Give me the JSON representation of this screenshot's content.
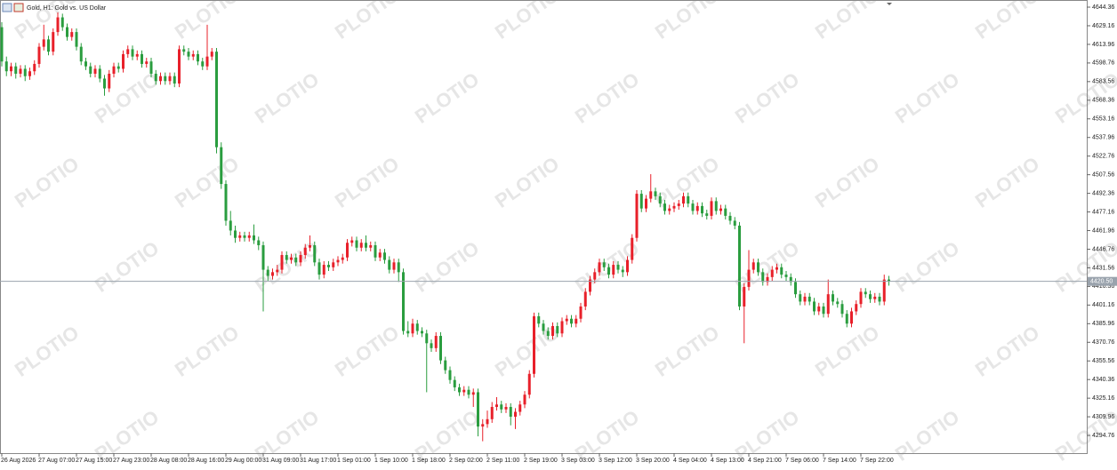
{
  "chart_data": {
    "type": "candlestick",
    "title": "Gold, H1:  Gold vs. US Dollar",
    "watermark": "PLOTIO",
    "up_color": "#e8202a",
    "down_color": "#2a9d3f",
    "ylim": [
      4280.3,
      4648.0
    ],
    "yticks": [
      4294.76,
      4309.96,
      4325.16,
      4340.36,
      4355.56,
      4370.76,
      4385.96,
      4401.16,
      4416.36,
      4431.56,
      4446.76,
      4461.96,
      4477.16,
      4492.36,
      4507.56,
      4522.76,
      4537.96,
      4553.16,
      4568.36,
      4583.56,
      4598.76,
      4613.96,
      4629.16,
      4644.36
    ],
    "last_price": {
      "value": 4420.5,
      "label": "4420.50"
    },
    "categories": [
      "26 Aug 2026",
      null,
      null,
      null,
      null,
      null,
      null,
      null,
      "27 Aug 07:00",
      null,
      null,
      null,
      null,
      null,
      null,
      null,
      "27 Aug 15:00",
      null,
      null,
      null,
      null,
      null,
      null,
      null,
      "27 Aug 23:00",
      null,
      null,
      null,
      null,
      null,
      null,
      null,
      "28 Aug 08:00",
      null,
      null,
      null,
      null,
      null,
      null,
      null,
      "28 Aug 16:00",
      null,
      null,
      null,
      null,
      null,
      null,
      null,
      "29 Aug 00:00",
      null,
      null,
      null,
      null,
      null,
      null,
      null,
      "31 Aug 09:00",
      null,
      null,
      null,
      null,
      null,
      null,
      null,
      "31 Aug 17:00",
      null,
      null,
      null,
      null,
      null,
      null,
      null,
      "1 Sep 01:00",
      null,
      null,
      null,
      null,
      null,
      null,
      null,
      "1 Sep 10:00",
      null,
      null,
      null,
      null,
      null,
      null,
      null,
      "1 Sep 18:00",
      null,
      null,
      null,
      null,
      null,
      null,
      null,
      "2 Sep 02:00",
      null,
      null,
      null,
      null,
      null,
      null,
      null,
      "2 Sep 11:00",
      null,
      null,
      null,
      null,
      null,
      null,
      null,
      "2 Sep 19:00",
      null,
      null,
      null,
      null,
      null,
      null,
      null,
      "3 Sep 03:00",
      null,
      null,
      null,
      null,
      null,
      null,
      null,
      "3 Sep 12:00",
      null,
      null,
      null,
      null,
      null,
      null,
      null,
      "3 Sep 20:00",
      null,
      null,
      null,
      null,
      null,
      null,
      null,
      "4 Sep 04:00",
      null,
      null,
      null,
      null,
      null,
      null,
      null,
      "4 Sep 13:00",
      null,
      null,
      null,
      null,
      null,
      null,
      null,
      "4 Sep 21:00",
      null,
      null,
      null,
      null,
      null,
      null,
      null,
      "7 Sep 06:00",
      null,
      null,
      null,
      null,
      null,
      null,
      null,
      "7 Sep 14:00",
      null,
      null,
      null,
      null,
      null,
      null,
      null,
      "7 Sep 22:00",
      null,
      null,
      null,
      null,
      null,
      null
    ],
    "ohlc": [
      [
        4628,
        4632,
        4596,
        4600
      ],
      [
        4600,
        4604,
        4588,
        4592
      ],
      [
        4592,
        4599,
        4588,
        4596
      ],
      [
        4596,
        4599,
        4586,
        4590
      ],
      [
        4590,
        4597,
        4587,
        4594
      ],
      [
        4594,
        4597,
        4584,
        4588
      ],
      [
        4588,
        4595,
        4585,
        4592
      ],
      [
        4592,
        4601,
        4589,
        4598
      ],
      [
        4598,
        4615,
        4595,
        4612
      ],
      [
        4612,
        4630,
        4609,
        4618
      ],
      [
        4618,
        4621,
        4605,
        4608
      ],
      [
        4608,
        4627,
        4605,
        4624
      ],
      [
        4624,
        4640,
        4621,
        4636
      ],
      [
        4636,
        4639,
        4625,
        4628
      ],
      [
        4628,
        4631,
        4617,
        4620
      ],
      [
        4620,
        4627,
        4617,
        4624
      ],
      [
        4624,
        4627,
        4609,
        4612
      ],
      [
        4612,
        4615,
        4597,
        4600
      ],
      [
        4600,
        4603,
        4593,
        4596
      ],
      [
        4596,
        4599,
        4587,
        4590
      ],
      [
        4590,
        4597,
        4587,
        4594
      ],
      [
        4594,
        4597,
        4583,
        4586
      ],
      [
        4586,
        4589,
        4572,
        4578
      ],
      [
        4578,
        4593,
        4575,
        4590
      ],
      [
        4590,
        4599,
        4587,
        4596
      ],
      [
        4596,
        4599,
        4591,
        4594
      ],
      [
        4594,
        4609,
        4591,
        4606
      ],
      [
        4606,
        4613,
        4603,
        4610
      ],
      [
        4610,
        4613,
        4601,
        4604
      ],
      [
        4604,
        4609,
        4601,
        4606
      ],
      [
        4606,
        4609,
        4595,
        4598
      ],
      [
        4598,
        4603,
        4595,
        4600
      ],
      [
        4600,
        4603,
        4587,
        4590
      ],
      [
        4590,
        4593,
        4581,
        4584
      ],
      [
        4584,
        4591,
        4581,
        4588
      ],
      [
        4588,
        4591,
        4581,
        4584
      ],
      [
        4584,
        4591,
        4581,
        4588
      ],
      [
        4588,
        4591,
        4579,
        4582
      ],
      [
        4582,
        4613,
        4579,
        4610
      ],
      [
        4610,
        4613,
        4605,
        4608
      ],
      [
        4608,
        4611,
        4601,
        4604
      ],
      [
        4604,
        4609,
        4601,
        4606
      ],
      [
        4606,
        4609,
        4597,
        4600
      ],
      [
        4600,
        4603,
        4593,
        4596
      ],
      [
        4596,
        4630,
        4593,
        4604
      ],
      [
        4604,
        4611,
        4601,
        4608
      ],
      [
        4608,
        4611,
        4525,
        4530
      ],
      [
        4530,
        4534,
        4496,
        4500
      ],
      [
        4500,
        4503,
        4466,
        4470
      ],
      [
        4470,
        4478,
        4458,
        4462
      ],
      [
        4462,
        4466,
        4452,
        4456
      ],
      [
        4456,
        4461,
        4453,
        4458
      ],
      [
        4458,
        4461,
        4453,
        4456
      ],
      [
        4456,
        4461,
        4453,
        4458
      ],
      [
        4458,
        4467,
        4451,
        4454
      ],
      [
        4454,
        4457,
        4446,
        4450
      ],
      [
        4450,
        4453,
        4396,
        4430
      ],
      [
        4430,
        4433,
        4421,
        4425
      ],
      [
        4425,
        4431,
        4422,
        4428
      ],
      [
        4428,
        4434,
        4425,
        4430
      ],
      [
        4430,
        4445,
        4427,
        4442
      ],
      [
        4442,
        4445,
        4435,
        4438
      ],
      [
        4438,
        4443,
        4435,
        4440
      ],
      [
        4440,
        4443,
        4433,
        4436
      ],
      [
        4436,
        4445,
        4433,
        4442
      ],
      [
        4442,
        4451,
        4439,
        4448
      ],
      [
        4448,
        4458,
        4445,
        4450
      ],
      [
        4450,
        4453,
        4433,
        4436
      ],
      [
        4436,
        4439,
        4422,
        4426
      ],
      [
        4426,
        4437,
        4423,
        4434
      ],
      [
        4434,
        4437,
        4429,
        4432
      ],
      [
        4432,
        4439,
        4429,
        4436
      ],
      [
        4436,
        4441,
        4433,
        4438
      ],
      [
        4438,
        4443,
        4435,
        4440
      ],
      [
        4440,
        4455,
        4437,
        4452
      ],
      [
        4452,
        4457,
        4449,
        4454
      ],
      [
        4454,
        4457,
        4445,
        4448
      ],
      [
        4448,
        4455,
        4445,
        4452
      ],
      [
        4452,
        4458,
        4445,
        4448
      ],
      [
        4448,
        4453,
        4445,
        4450
      ],
      [
        4450,
        4453,
        4437,
        4440
      ],
      [
        4440,
        4447,
        4437,
        4444
      ],
      [
        4444,
        4447,
        4435,
        4438
      ],
      [
        4438,
        4441,
        4427,
        4430
      ],
      [
        4430,
        4439,
        4427,
        4436
      ],
      [
        4436,
        4439,
        4420,
        4428
      ],
      [
        4428,
        4431,
        4377,
        4380
      ],
      [
        4380,
        4388,
        4375,
        4378
      ],
      [
        4378,
        4390,
        4375,
        4386
      ],
      [
        4386,
        4389,
        4377,
        4380
      ],
      [
        4380,
        4383,
        4375,
        4378
      ],
      [
        4378,
        4381,
        4330,
        4370
      ],
      [
        4370,
        4373,
        4363,
        4366
      ],
      [
        4366,
        4379,
        4363,
        4376
      ],
      [
        4376,
        4379,
        4353,
        4356
      ],
      [
        4356,
        4359,
        4345,
        4348
      ],
      [
        4348,
        4351,
        4337,
        4340
      ],
      [
        4340,
        4343,
        4331,
        4334
      ],
      [
        4334,
        4337,
        4327,
        4330
      ],
      [
        4330,
        4335,
        4327,
        4332
      ],
      [
        4332,
        4335,
        4325,
        4328
      ],
      [
        4328,
        4333,
        4318,
        4330
      ],
      [
        4330,
        4333,
        4294,
        4302
      ],
      [
        4302,
        4308,
        4290,
        4304
      ],
      [
        4304,
        4315,
        4301,
        4308
      ],
      [
        4308,
        4322,
        4305,
        4318
      ],
      [
        4318,
        4326,
        4315,
        4320
      ],
      [
        4320,
        4323,
        4313,
        4316
      ],
      [
        4316,
        4321,
        4313,
        4318
      ],
      [
        4318,
        4321,
        4303,
        4310
      ],
      [
        4310,
        4317,
        4300,
        4314
      ],
      [
        4314,
        4323,
        4311,
        4320
      ],
      [
        4320,
        4331,
        4317,
        4328
      ],
      [
        4328,
        4348,
        4325,
        4345
      ],
      [
        4345,
        4395,
        4342,
        4392
      ],
      [
        4392,
        4395,
        4383,
        4386
      ],
      [
        4386,
        4389,
        4377,
        4380
      ],
      [
        4380,
        4383,
        4373,
        4376
      ],
      [
        4376,
        4387,
        4373,
        4384
      ],
      [
        4384,
        4387,
        4375,
        4378
      ],
      [
        4378,
        4391,
        4375,
        4388
      ],
      [
        4388,
        4393,
        4385,
        4390
      ],
      [
        4390,
        4393,
        4383,
        4386
      ],
      [
        4386,
        4393,
        4383,
        4390
      ],
      [
        4390,
        4403,
        4387,
        4400
      ],
      [
        4400,
        4415,
        4397,
        4412
      ],
      [
        4412,
        4425,
        4409,
        4422
      ],
      [
        4422,
        4431,
        4419,
        4428
      ],
      [
        4428,
        4439,
        4425,
        4436
      ],
      [
        4436,
        4439,
        4429,
        4432
      ],
      [
        4432,
        4435,
        4423,
        4426
      ],
      [
        4426,
        4437,
        4423,
        4434
      ],
      [
        4434,
        4437,
        4427,
        4430
      ],
      [
        4430,
        4433,
        4424,
        4428
      ],
      [
        4428,
        4441,
        4425,
        4438
      ],
      [
        4438,
        4459,
        4435,
        4456
      ],
      [
        4456,
        4495,
        4453,
        4492
      ],
      [
        4492,
        4495,
        4477,
        4480
      ],
      [
        4480,
        4491,
        4477,
        4488
      ],
      [
        4488,
        4508,
        4485,
        4494
      ],
      [
        4494,
        4497,
        4487,
        4490
      ],
      [
        4490,
        4493,
        4481,
        4484
      ],
      [
        4484,
        4487,
        4475,
        4478
      ],
      [
        4478,
        4483,
        4475,
        4480
      ],
      [
        4480,
        4485,
        4477,
        4482
      ],
      [
        4482,
        4487,
        4479,
        4484
      ],
      [
        4484,
        4493,
        4481,
        4490
      ],
      [
        4490,
        4493,
        4481,
        4484
      ],
      [
        4484,
        4487,
        4475,
        4478
      ],
      [
        4478,
        4485,
        4475,
        4482
      ],
      [
        4482,
        4485,
        4473,
        4476
      ],
      [
        4476,
        4479,
        4471,
        4474
      ],
      [
        4474,
        4489,
        4471,
        4486
      ],
      [
        4486,
        4489,
        4475,
        4478
      ],
      [
        4478,
        4483,
        4475,
        4480
      ],
      [
        4480,
        4483,
        4471,
        4474
      ],
      [
        4474,
        4477,
        4467,
        4470
      ],
      [
        4470,
        4473,
        4463,
        4466
      ],
      [
        4466,
        4469,
        4397,
        4400
      ],
      [
        4400,
        4419,
        4370,
        4416
      ],
      [
        4416,
        4446,
        4413,
        4430
      ],
      [
        4430,
        4439,
        4427,
        4436
      ],
      [
        4436,
        4439,
        4425,
        4428
      ],
      [
        4428,
        4431,
        4417,
        4420
      ],
      [
        4420,
        4427,
        4417,
        4424
      ],
      [
        4424,
        4433,
        4421,
        4430
      ],
      [
        4430,
        4435,
        4427,
        4432
      ],
      [
        4432,
        4435,
        4423,
        4426
      ],
      [
        4426,
        4429,
        4421,
        4424
      ],
      [
        4424,
        4427,
        4417,
        4420
      ],
      [
        4420,
        4423,
        4407,
        4410
      ],
      [
        4410,
        4413,
        4401,
        4404
      ],
      [
        4404,
        4411,
        4401,
        4408
      ],
      [
        4408,
        4411,
        4401,
        4404
      ],
      [
        4404,
        4407,
        4393,
        4396
      ],
      [
        4396,
        4403,
        4393,
        4400
      ],
      [
        4400,
        4403,
        4391,
        4394
      ],
      [
        4394,
        4422,
        4391,
        4410
      ],
      [
        4410,
        4413,
        4401,
        4404
      ],
      [
        4404,
        4407,
        4399,
        4402
      ],
      [
        4402,
        4405,
        4391,
        4394
      ],
      [
        4394,
        4397,
        4383,
        4386
      ],
      [
        4386,
        4399,
        4383,
        4396
      ],
      [
        4396,
        4405,
        4393,
        4402
      ],
      [
        4402,
        4415,
        4399,
        4412
      ],
      [
        4412,
        4415,
        4407,
        4410
      ],
      [
        4410,
        4413,
        4403,
        4406
      ],
      [
        4406,
        4411,
        4403,
        4408
      ],
      [
        4408,
        4411,
        4401,
        4404
      ],
      [
        4404,
        4426,
        4401,
        4422
      ],
      [
        4422,
        4425,
        4417,
        4420.5
      ]
    ]
  }
}
